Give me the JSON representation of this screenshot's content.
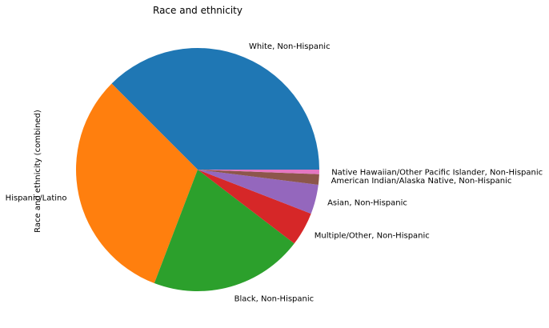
{
  "chart_data": {
    "type": "pie",
    "title": "Race and ethnicity",
    "ylabel": "Race and ethnicity (combined)",
    "slices": [
      {
        "label": "White, Non-Hispanic",
        "value": 37.5,
        "color": "#1f77b4"
      },
      {
        "label": "Hispanic/Latino",
        "value": 31.7,
        "color": "#ff7f0e"
      },
      {
        "label": "Black, Non-Hispanic",
        "value": 20.4,
        "color": "#2ca02c"
      },
      {
        "label": "Multiple/Other, Non-Hispanic",
        "value": 4.5,
        "color": "#d62728"
      },
      {
        "label": "Asian, Non-Hispanic",
        "value": 3.9,
        "color": "#9467bd"
      },
      {
        "label": "American Indian/Alaska Native, Non-Hispanic",
        "value": 1.4,
        "color": "#8c564b"
      },
      {
        "label": "Native Hawaiian/Other Pacific Islander, Non-Hispanic",
        "value": 0.6,
        "color": "#e377c2"
      }
    ],
    "start_angle_deg": 0,
    "direction": "counterclockwise",
    "legend": "none"
  }
}
